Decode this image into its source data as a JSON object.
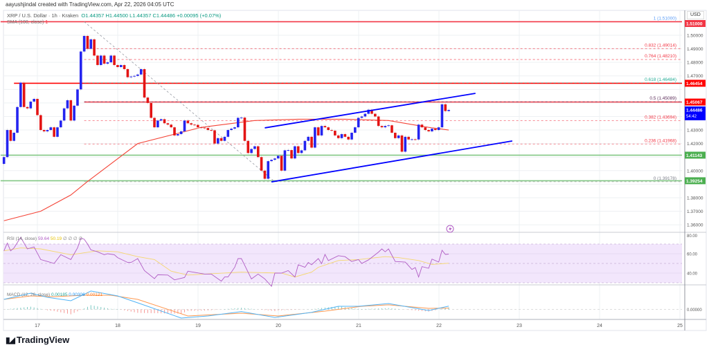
{
  "header": {
    "credit": "aayushjindal created with TradingView.com, Apr 22, 2026 04:05 UTC",
    "symbol": "XRP / U.S. Dollar · 1h · Kraken",
    "open": "O1.44357",
    "high": "H1.44500",
    "low": "L1.44357",
    "close": "C1.44486",
    "change": "+0.00095 (+0.07%)",
    "sma_label": "SMA (100, close)",
    "sma_value": "1"
  },
  "price_axis": {
    "currency": "USD",
    "ticks": [
      "1.50000",
      "1.49000",
      "1.48000",
      "1.47000",
      "1.46000",
      "1.45000",
      "1.44000",
      "1.43000",
      "1.42000",
      "1.41000",
      "1.40000",
      "1.39000",
      "1.38000",
      "1.37000",
      "1.36000"
    ],
    "tags": [
      {
        "price": 1.51,
        "label": "1.51000",
        "color": "#f23645"
      },
      {
        "price": 1.46454,
        "label": "1.46454",
        "color": "#ff0000"
      },
      {
        "price": 1.45067,
        "label": "1.45067",
        "color": "#ff0000"
      },
      {
        "price": 1.44486,
        "label": "1.44486",
        "sub": "54:42",
        "color": "#0000ff"
      },
      {
        "price": 1.41143,
        "label": "1.41143",
        "color": "#4caf50"
      },
      {
        "price": 1.39254,
        "label": "1.39254",
        "color": "#4caf50"
      }
    ]
  },
  "time_axis": {
    "ticks": [
      "17",
      "18",
      "19",
      "20",
      "21",
      "22",
      "23",
      "24",
      "25"
    ]
  },
  "levels": {
    "horizontal": [
      {
        "price": 1.51,
        "color": "#f23645",
        "from": "04-16 13:00"
      },
      {
        "price": 1.46454,
        "color": "#ff0000",
        "from": "04-16 17:00"
      },
      {
        "price": 1.45067,
        "color": "#f44c56",
        "from": "04-17 14:00"
      },
      {
        "price": 1.41143,
        "color": "#81c784",
        "from": "04-16 13:00"
      },
      {
        "price": 1.39254,
        "color": "#81c784",
        "from": "04-16 13:00"
      }
    ],
    "fib": [
      {
        "ratio": "1",
        "price": 1.51,
        "label": "1 (1.51000)",
        "color": "#5b9cf6"
      },
      {
        "ratio": "0.832",
        "price": 1.49014,
        "label": "0.832 (1.49014)",
        "color": "#f23645"
      },
      {
        "ratio": "0.764",
        "price": 1.4821,
        "label": "0.764 (1.48210)",
        "color": "#f23645"
      },
      {
        "ratio": "0.618",
        "price": 1.46484,
        "label": "0.618 (1.46484)",
        "color": "#22ab94"
      },
      {
        "ratio": "0.5",
        "price": 1.45089,
        "label": "0.5 (1.45089)",
        "color": "#5d2e5a"
      },
      {
        "ratio": "0.382",
        "price": 1.43694,
        "label": "0.382 (1.43694)",
        "color": "#f23645"
      },
      {
        "ratio": "0.236",
        "price": 1.41968,
        "label": "0.236 (1.41968)",
        "color": "#f23645"
      },
      {
        "ratio": "0",
        "price": 1.39178,
        "label": "0 (1.39178)",
        "color": "#787b86"
      }
    ],
    "fib_anchor": {
      "from": [
        "04-17 14:00",
        1.51
      ],
      "to": [
        "04-19 23:00",
        1.39178
      ]
    },
    "trendlines": [
      {
        "name": "channel-upper",
        "from": [
          "04-19 20:00",
          1.4316
        ],
        "to": [
          "04-22 11:00",
          1.4571
        ],
        "color": "#0000ff"
      },
      {
        "name": "channel-lower",
        "from": [
          "04-19 22:00",
          1.3917
        ],
        "to": [
          "04-22 22:00",
          1.4219
        ],
        "color": "#0000ff"
      }
    ]
  },
  "colors": {
    "up": "#2424f0",
    "down": "#e31414",
    "sma": "#f44336",
    "rsi": "#b05cc4",
    "rsi_signal": "#f5d76e",
    "rsi_band": "#f2e6fc",
    "macd": "#4fb3f6",
    "macd_signal": "#ff9850",
    "hist_up": "#26a69a",
    "hist_down": "#ef5350"
  },
  "chart_data": {
    "type": "candlestick",
    "interval": "1h",
    "first_open": 1.405,
    "candles_by_day": [
      {
        "day": "04-16",
        "start": "14:00",
        "closes": [
          1.41,
          1.43,
          1.422,
          1.428,
          1.447,
          1.465,
          1.447,
          1.446,
          1.451,
          1.453
        ]
      },
      {
        "day": "04-17",
        "start": "00:00",
        "closes": [
          1.441,
          1.43,
          1.429,
          1.43,
          1.432,
          1.425,
          1.432,
          1.437,
          1.446,
          1.452,
          1.437,
          1.448,
          1.46,
          1.488,
          1.4995,
          1.49,
          1.497,
          1.485,
          1.478,
          1.485,
          1.479,
          1.48,
          1.485,
          1.478
        ]
      },
      {
        "day": "04-18",
        "start": "00:00",
        "closes": [
          1.4765,
          1.478,
          1.475,
          1.469,
          1.4695,
          1.47,
          1.471,
          1.475,
          1.454,
          1.45,
          1.439,
          1.432,
          1.437,
          1.438,
          1.435,
          1.434,
          1.432,
          1.426,
          1.427,
          1.429,
          1.437,
          1.435,
          1.434,
          1.4338
        ]
      },
      {
        "day": "04-19",
        "start": "00:00",
        "closes": [
          1.432,
          1.4318,
          1.4315,
          1.43,
          1.4298,
          1.42,
          1.424,
          1.422,
          1.425,
          1.43,
          1.431,
          1.432,
          1.439,
          1.4392,
          1.422,
          1.413,
          1.416,
          1.418,
          1.41,
          1.4,
          1.394,
          1.407,
          1.408,
          1.409
        ]
      },
      {
        "day": "04-20",
        "start": "00:00",
        "closes": [
          1.411,
          1.4,
          1.415,
          1.4152,
          1.409,
          1.418,
          1.413,
          1.415,
          1.422,
          1.425,
          1.417,
          1.432,
          1.426,
          1.433,
          1.432,
          1.43,
          1.4295,
          1.426,
          1.424,
          1.427,
          1.425,
          1.423,
          1.428,
          1.432
        ]
      },
      {
        "day": "04-21",
        "start": "00:00",
        "closes": [
          1.439,
          1.44,
          1.442,
          1.445,
          1.442,
          1.44,
          1.433,
          1.432,
          1.433,
          1.4335,
          1.428,
          1.424,
          1.426,
          1.414,
          1.425,
          1.423,
          1.4232,
          1.423,
          1.434,
          1.432,
          1.43,
          1.429,
          1.431,
          1.43
        ]
      },
      {
        "day": "04-22",
        "start": "00:00",
        "closes": [
          1.432,
          1.449,
          1.444,
          1.44486
        ]
      }
    ],
    "sma100": [
      [
        "04-16 14:00",
        1.363
      ],
      [
        "04-17 01:00",
        1.37
      ],
      [
        "04-17 10:00",
        1.382
      ],
      [
        "04-17 15:00",
        1.392
      ],
      [
        "04-18 06:00",
        1.42
      ],
      [
        "04-19 01:00",
        1.432
      ],
      [
        "04-19 17:00",
        1.437
      ],
      [
        "04-20 06:00",
        1.438
      ],
      [
        "04-20 20:00",
        1.438
      ],
      [
        "04-21 09:00",
        1.437
      ],
      [
        "04-21 21:00",
        1.432
      ],
      [
        "04-22 03:00",
        1.43
      ]
    ],
    "ylim": [
      1.355,
      1.512
    ],
    "rsi": {
      "label": "RSI (14, close)",
      "value": "59.64",
      "signal_value": "50.19",
      "extra": "∅ ∅ ∅ ∅",
      "ticks": [
        "80.00",
        "60.00",
        "40.00"
      ],
      "band": [
        30,
        70
      ],
      "values": [
        [
          "04-16 14:00",
          63
        ],
        [
          "04-16 15:00",
          71
        ],
        [
          "04-16 16:00",
          63
        ],
        [
          "04-16 17:00",
          66
        ],
        [
          "04-16 19:00",
          77
        ],
        [
          "04-16 21:00",
          65
        ],
        [
          "04-16 23:00",
          67
        ],
        [
          "04-17 01:00",
          54
        ],
        [
          "04-17 03:00",
          52
        ],
        [
          "04-17 05:00",
          50
        ],
        [
          "04-17 07:00",
          59
        ],
        [
          "04-17 10:00",
          54
        ],
        [
          "04-17 12:00",
          66
        ],
        [
          "04-17 13:00",
          76
        ],
        [
          "04-17 14:00",
          75
        ],
        [
          "04-17 15:00",
          70
        ],
        [
          "04-17 16:00",
          64
        ],
        [
          "04-17 18:00",
          62
        ],
        [
          "04-17 20:00",
          59
        ],
        [
          "04-17 21:00",
          60
        ],
        [
          "04-17 23:00",
          59
        ],
        [
          "04-18 00:00",
          56
        ],
        [
          "04-18 03:00",
          51
        ],
        [
          "04-18 04:00",
          51
        ],
        [
          "04-18 06:00",
          55
        ],
        [
          "04-18 08:00",
          42.6
        ],
        [
          "04-18 11:00",
          34.3
        ],
        [
          "04-18 12:00",
          38.3
        ],
        [
          "04-18 15:00",
          38
        ],
        [
          "04-18 17:00",
          33
        ],
        [
          "04-18 20:00",
          35.5
        ],
        [
          "04-18 21:00",
          42
        ],
        [
          "04-19 02:00",
          39
        ],
        [
          "04-19 04:00",
          39
        ],
        [
          "04-19 07:00",
          31.7
        ],
        [
          "04-19 08:00",
          36
        ],
        [
          "04-19 09:00",
          36
        ],
        [
          "04-19 11:00",
          46
        ],
        [
          "04-19 12:00",
          55
        ],
        [
          "04-19 13:00",
          55
        ],
        [
          "04-19 16:00",
          34
        ],
        [
          "04-19 18:00",
          39
        ],
        [
          "04-19 20:00",
          34
        ],
        [
          "04-19 22:00",
          26.4
        ],
        [
          "04-19 23:00",
          40
        ],
        [
          "04-20 01:00",
          40
        ],
        [
          "04-20 03:00",
          42.6
        ],
        [
          "04-20 05:00",
          36
        ],
        [
          "04-20 06:00",
          48.6
        ],
        [
          "04-20 08:00",
          46
        ],
        [
          "04-20 09:00",
          51
        ],
        [
          "04-20 10:00",
          48.6
        ],
        [
          "04-20 12:00",
          55
        ],
        [
          "04-20 13:00",
          49.8
        ],
        [
          "04-20 14:00",
          59.3
        ],
        [
          "04-20 15:00",
          52.9
        ],
        [
          "04-20 18:00",
          58
        ],
        [
          "04-20 20:00",
          57
        ],
        [
          "04-20 22:00",
          52
        ],
        [
          "04-21 00:00",
          54
        ],
        [
          "04-21 01:00",
          50
        ],
        [
          "04-21 03:00",
          53.6
        ],
        [
          "04-21 06:00",
          61.7
        ],
        [
          "04-21 07:00",
          65
        ],
        [
          "04-21 08:00",
          62
        ],
        [
          "04-21 09:00",
          65
        ],
        [
          "04-21 11:00",
          52
        ],
        [
          "04-21 14:00",
          51.4
        ],
        [
          "04-21 16:00",
          43.8
        ],
        [
          "04-21 17:00",
          45.7
        ],
        [
          "04-21 18:00",
          36
        ],
        [
          "04-21 19:00",
          46.7
        ],
        [
          "04-21 21:00",
          45
        ],
        [
          "04-21 22:00",
          54.5
        ],
        [
          "04-22 00:00",
          51.4
        ],
        [
          "04-22 01:00",
          63.6
        ],
        [
          "04-22 02:00",
          59.3
        ],
        [
          "04-22 03:00",
          59.64
        ]
      ],
      "signal": [
        [
          "04-16 14:00",
          63
        ],
        [
          "04-16 19:00",
          66
        ],
        [
          "04-17 01:00",
          65
        ],
        [
          "04-17 10:00",
          59
        ],
        [
          "04-17 18:00",
          63
        ],
        [
          "04-18 00:00",
          62
        ],
        [
          "04-18 06:00",
          57
        ],
        [
          "04-18 11:00",
          54
        ],
        [
          "04-18 16:00",
          42
        ],
        [
          "04-18 21:00",
          38
        ],
        [
          "04-19 02:00",
          39
        ],
        [
          "04-19 13:00",
          41
        ],
        [
          "04-20 01:00",
          40
        ],
        [
          "04-20 05:00",
          36
        ],
        [
          "04-20 10:00",
          41
        ],
        [
          "04-20 12:00",
          46
        ],
        [
          "04-20 18:00",
          53
        ],
        [
          "04-21 00:00",
          54
        ],
        [
          "04-21 08:00",
          57
        ],
        [
          "04-21 12:00",
          56
        ],
        [
          "04-21 18:00",
          53
        ],
        [
          "04-21 22:00",
          49
        ],
        [
          "04-22 03:00",
          50.19
        ]
      ]
    },
    "macd": {
      "label": "MACD (12, 26, close)",
      "histogram_value": "0.00185",
      "macd_value": "0.00306",
      "signal_value": "0.00121",
      "ticks": [
        "0.00000"
      ],
      "macd": [
        [
          "04-16 14:00",
          0.0093
        ],
        [
          "04-16 22:00",
          0.015
        ],
        [
          "04-17 03:00",
          0.0112
        ],
        [
          "04-17 10:00",
          0.008
        ],
        [
          "04-17 16:00",
          0.017
        ],
        [
          "04-18 00:00",
          0.0125
        ],
        [
          "04-18 06:00",
          0.0061
        ],
        [
          "04-18 19:00",
          -0.008
        ],
        [
          "04-19 03:00",
          -0.0061
        ],
        [
          "04-19 13:00",
          -0.002
        ],
        [
          "04-19 23:00",
          -0.0074
        ],
        [
          "04-20 10:00",
          -0.0027
        ],
        [
          "04-20 18:00",
          0.0029
        ],
        [
          "04-21 00:00",
          0.0029
        ],
        [
          "04-21 09:00",
          0.0054
        ],
        [
          "04-21 21:00",
          -0.001
        ],
        [
          "04-22 03:00",
          0.00306
        ]
      ],
      "signal": [
        [
          "04-16 14:00",
          0.0093
        ],
        [
          "04-16 22:00",
          0.0125
        ],
        [
          "04-17 05:00",
          0.0118
        ],
        [
          "04-17 14:00",
          0.0131
        ],
        [
          "04-17 22:00",
          0.0131
        ],
        [
          "04-18 06:00",
          0.0093
        ],
        [
          "04-18 21:00",
          -0.0061
        ],
        [
          "04-19 13:00",
          -0.0035
        ],
        [
          "04-20 00:00",
          -0.0061
        ],
        [
          "04-20 14:00",
          -0.0016
        ],
        [
          "04-21 01:00",
          0.0029
        ],
        [
          "04-21 09:00",
          0.0042
        ],
        [
          "04-21 21:00",
          0.001
        ],
        [
          "04-22 03:00",
          0.00121
        ]
      ]
    }
  },
  "branding": {
    "logo_text": "TradingView",
    "logo_mark": "TV"
  }
}
